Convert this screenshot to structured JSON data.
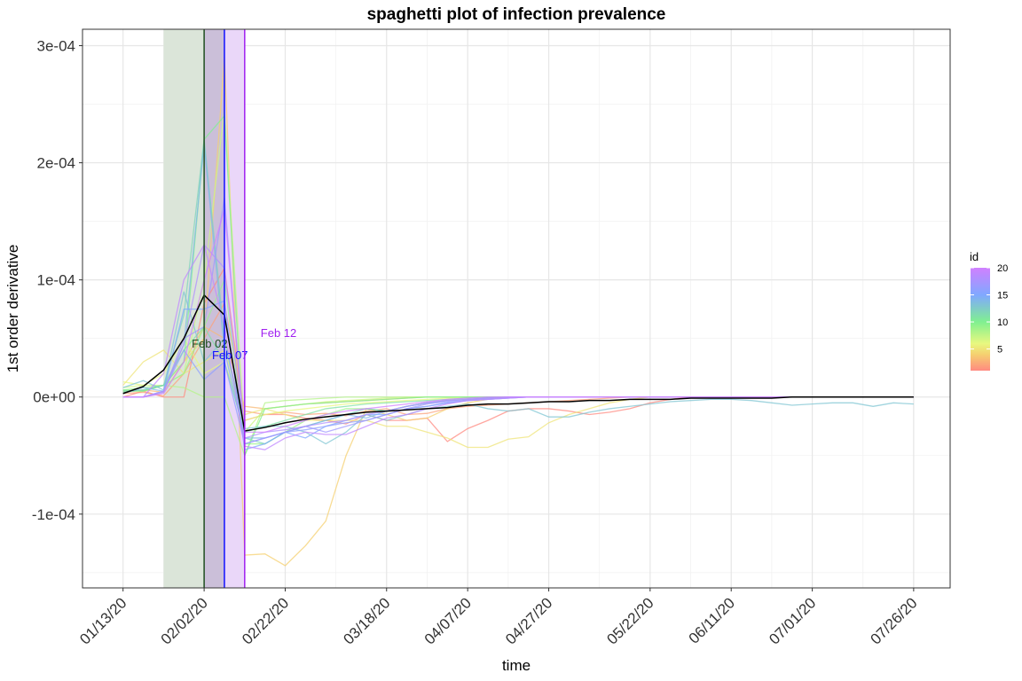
{
  "chart_data": {
    "type": "line",
    "title": "spaghetti plot of infection prevalence",
    "xlabel": "time",
    "ylabel": "1st order derivative",
    "ylim": [
      -0.000163,
      0.000314
    ],
    "xlim": [
      "2020-01-03",
      "2020-08-04"
    ],
    "grid": true,
    "x_ticks": [
      {
        "date": "2020-01-13",
        "label": "01/13/20"
      },
      {
        "date": "2020-02-02",
        "label": "02/02/20"
      },
      {
        "date": "2020-02-22",
        "label": "02/22/20"
      },
      {
        "date": "2020-03-18",
        "label": "03/18/20"
      },
      {
        "date": "2020-04-07",
        "label": "04/07/20"
      },
      {
        "date": "2020-04-27",
        "label": "04/27/20"
      },
      {
        "date": "2020-05-22",
        "label": "05/22/20"
      },
      {
        "date": "2020-06-11",
        "label": "06/11/20"
      },
      {
        "date": "2020-07-01",
        "label": "07/01/20"
      },
      {
        "date": "2020-07-26",
        "label": "07/26/20"
      }
    ],
    "y_ticks": [
      {
        "value": 0.0003,
        "label": "3e-04"
      },
      {
        "value": 0.0002,
        "label": "2e-04"
      },
      {
        "value": 0.0001,
        "label": "1e-04"
      },
      {
        "value": 0,
        "label": "0e+00"
      },
      {
        "value": -0.0001,
        "label": "-1e-04"
      }
    ],
    "x": [
      "2020-01-13",
      "2020-01-18",
      "2020-01-23",
      "2020-01-28",
      "2020-02-02",
      "2020-02-07",
      "2020-02-12",
      "2020-02-17",
      "2020-02-22",
      "2020-02-27",
      "2020-03-03",
      "2020-03-08",
      "2020-03-13",
      "2020-03-18",
      "2020-03-23",
      "2020-03-28",
      "2020-04-02",
      "2020-04-07",
      "2020-04-12",
      "2020-04-17",
      "2020-04-22",
      "2020-04-27",
      "2020-05-02",
      "2020-05-07",
      "2020-05-12",
      "2020-05-17",
      "2020-05-22",
      "2020-05-27",
      "2020-06-01",
      "2020-06-06",
      "2020-06-11",
      "2020-06-16",
      "2020-06-21",
      "2020-06-26",
      "2020-07-01",
      "2020-07-06",
      "2020-07-11",
      "2020-07-16",
      "2020-07-21",
      "2020-07-26"
    ],
    "legend": {
      "title": "id",
      "position": "right",
      "type": "colorbar",
      "min": 1,
      "max": 20,
      "ticks": [
        5,
        10,
        15,
        20
      ],
      "color_stops": [
        {
          "id": 1,
          "color": "#ff8a80"
        },
        {
          "id": 4,
          "color": "#f5d070"
        },
        {
          "id": 6,
          "color": "#e8f880"
        },
        {
          "id": 10,
          "color": "#80f090"
        },
        {
          "id": 15,
          "color": "#80a8ff"
        },
        {
          "id": 20,
          "color": "#d080ff"
        }
      ]
    },
    "series": [
      {
        "id": 1,
        "values": [
          0,
          5e-06,
          0,
          0,
          8e-05,
          0.00011,
          -2e-05,
          -1.5e-05,
          -1.5e-05,
          -1.8e-05,
          -2e-05,
          -2.3e-05,
          -1.5e-05,
          -2e-05,
          -2e-05,
          -1.8e-05,
          -3.8e-05,
          -2.7e-05,
          -2e-05,
          -1.2e-05,
          -1e-05,
          -1e-05,
          -1.2e-05,
          -1.5e-05,
          -1.3e-05,
          -1e-05,
          -5e-06,
          -2e-06,
          0,
          0,
          0,
          0,
          0,
          0,
          0,
          0,
          0,
          0,
          0,
          0
        ]
      },
      {
        "id": 2,
        "values": [
          3e-06,
          4e-06,
          1e-06,
          2e-05,
          5e-05,
          8e-05,
          -1.2e-05,
          -1.5e-05,
          -1.3e-05,
          -1.5e-05,
          -1.4e-05,
          -1.6e-05,
          -1.2e-05,
          -1e-05,
          -1.5e-05,
          -1.4e-05,
          -1e-05,
          -8e-06,
          -7e-06,
          -6e-06,
          -5e-06,
          -4e-06,
          -3e-06,
          -2e-06,
          -1e-06,
          0,
          0,
          0,
          0,
          0,
          0,
          0,
          0,
          0,
          0,
          0,
          0,
          0,
          0,
          0
        ]
      },
      {
        "id": 3,
        "values": [
          5e-06,
          6e-06,
          4e-06,
          3e-05,
          6e-05,
          5e-05,
          -8e-06,
          -1e-05,
          -8e-06,
          -6e-06,
          -5e-06,
          -4e-06,
          -3e-06,
          -2e-06,
          -1e-06,
          0,
          0,
          0,
          0,
          0,
          0,
          0,
          0,
          0,
          0,
          0,
          0,
          0,
          0,
          0,
          0,
          0,
          0,
          0,
          0,
          0,
          0,
          0,
          0,
          0
        ]
      },
      {
        "id": 4,
        "values": [
          5e-06,
          5e-06,
          1e-05,
          3e-05,
          5e-05,
          0.00029,
          -0.000135,
          -0.000134,
          -0.000144,
          -0.000127,
          -0.000106,
          -5e-05,
          -1e-05,
          -1.5e-05,
          -2e-05,
          -1.8e-05,
          -1e-05,
          -5e-06,
          -2e-06,
          0,
          0,
          0,
          0,
          0,
          0,
          0,
          0,
          0,
          0,
          0,
          0,
          0,
          0,
          0,
          0,
          0,
          0,
          0,
          0,
          0
        ]
      },
      {
        "id": 5,
        "values": [
          1e-05,
          3e-05,
          4e-05,
          2e-05,
          3e-05,
          4e-05,
          -1.5e-05,
          -1e-05,
          -1.5e-05,
          -2e-05,
          -2e-05,
          -2e-05,
          -2e-05,
          -2.5e-05,
          -2.5e-05,
          -3e-05,
          -3.5e-05,
          -4.3e-05,
          -4.3e-05,
          -3.6e-05,
          -3.4e-05,
          -2.2e-05,
          -1.5e-05,
          -1e-05,
          -5e-06,
          -2e-06,
          0,
          0,
          0,
          0,
          0,
          0,
          0,
          0,
          0,
          0,
          0,
          0,
          0,
          0
        ]
      },
      {
        "id": 6,
        "values": [
          1.3e-05,
          1e-05,
          2e-05,
          5e-05,
          2e-05,
          3e-05,
          -2e-05,
          -1.5e-05,
          -1.2e-05,
          -1e-05,
          -8e-06,
          -6e-06,
          -5e-06,
          -4e-06,
          -3e-06,
          -2e-06,
          -1e-06,
          0,
          0,
          0,
          0,
          0,
          0,
          0,
          0,
          0,
          0,
          0,
          0,
          0,
          0,
          0,
          0,
          0,
          0,
          0,
          0,
          0,
          0,
          0
        ]
      },
      {
        "id": 7,
        "values": [
          8e-06,
          1e-05,
          1e-05,
          2e-05,
          0.0001,
          0.000245,
          -3e-05,
          -1e-05,
          -8e-06,
          -6e-06,
          -4e-06,
          -3e-06,
          -2e-06,
          -1e-06,
          0,
          0,
          0,
          0,
          0,
          0,
          0,
          0,
          0,
          0,
          0,
          0,
          0,
          0,
          0,
          0,
          0,
          0,
          0,
          0,
          0,
          0,
          0,
          0,
          0,
          0
        ]
      },
      {
        "id": 8,
        "values": [
          5e-06,
          5e-06,
          1e-05,
          8e-06,
          0,
          0,
          -5e-05,
          -5e-06,
          -3e-06,
          -2e-06,
          -1e-06,
          0,
          0,
          0,
          0,
          0,
          0,
          0,
          0,
          0,
          0,
          0,
          0,
          0,
          0,
          0,
          0,
          0,
          0,
          0,
          0,
          0,
          0,
          0,
          0,
          0,
          0,
          0,
          0,
          0
        ]
      },
      {
        "id": 9,
        "values": [
          6e-06,
          8e-06,
          1e-05,
          2e-05,
          6e-05,
          0.0001,
          -4e-05,
          -4e-05,
          -3e-05,
          -2e-05,
          -1.5e-05,
          -1e-05,
          -1e-05,
          -1.2e-05,
          -8e-06,
          -5e-06,
          -3e-06,
          -2e-06,
          -1e-06,
          0,
          0,
          0,
          0,
          0,
          0,
          0,
          0,
          0,
          0,
          0,
          0,
          0,
          0,
          0,
          0,
          0,
          0,
          0,
          0,
          0
        ]
      },
      {
        "id": 10,
        "values": [
          6e-06,
          5e-06,
          1e-05,
          3e-05,
          0.00022,
          0.00024,
          -5e-05,
          -1e-05,
          -8e-06,
          -6e-06,
          -5e-06,
          -4e-06,
          -3e-06,
          -2e-06,
          -1e-06,
          0,
          0,
          0,
          0,
          0,
          0,
          0,
          0,
          0,
          0,
          0,
          0,
          0,
          0,
          0,
          0,
          0,
          0,
          0,
          0,
          0,
          0,
          0,
          0,
          0
        ]
      },
      {
        "id": 11,
        "values": [
          4e-06,
          6e-06,
          1e-05,
          4e-05,
          6e-05,
          3e-05,
          -3e-05,
          -2.5e-05,
          -2e-05,
          -1.5e-05,
          -1e-05,
          -8e-06,
          -6e-06,
          -5e-06,
          -4e-06,
          -3e-06,
          -2e-06,
          -1e-06,
          0,
          0,
          0,
          0,
          0,
          0,
          0,
          0,
          0,
          0,
          0,
          0,
          0,
          0,
          0,
          0,
          0,
          0,
          0,
          0,
          0,
          0
        ]
      },
      {
        "id": 12,
        "values": [
          5e-06,
          6e-06,
          1e-05,
          7e-05,
          0.00022,
          5e-05,
          -3.5e-05,
          -4e-05,
          -3e-05,
          -2.5e-05,
          -2e-05,
          -1.5e-05,
          -1e-05,
          -1.2e-05,
          -8e-06,
          -5e-06,
          -3e-06,
          -2e-06,
          -1e-06,
          0,
          0,
          0,
          0,
          0,
          0,
          0,
          0,
          0,
          0,
          0,
          0,
          0,
          0,
          0,
          0,
          0,
          0,
          0,
          0,
          0
        ]
      },
      {
        "id": 13,
        "values": [
          8e-06,
          1.4e-05,
          6e-06,
          9e-05,
          3e-05,
          5e-05,
          -2.7e-05,
          -2.5e-05,
          -2.5e-05,
          -3e-05,
          -4e-05,
          -3e-05,
          -1.5e-05,
          -2e-05,
          -1.5e-05,
          -1e-05,
          -8e-06,
          -6e-06,
          -1e-05,
          -1.2e-05,
          -1e-05,
          -1.7e-05,
          -1.7e-05,
          -1.3e-05,
          -1e-05,
          -8e-06,
          -6e-06,
          -4e-06,
          -3e-06,
          -2e-06,
          -2e-06,
          -3e-06,
          -5e-06,
          -7e-06,
          -6e-06,
          -5e-06,
          -5e-06,
          -8e-06,
          -5e-06,
          -6e-06
        ]
      },
      {
        "id": 14,
        "values": [
          3e-06,
          8e-06,
          5e-06,
          4.5e-05,
          0.000215,
          4e-05,
          -3.5e-05,
          -3.5e-05,
          -3e-05,
          -2.5e-05,
          -2e-05,
          -1.5e-05,
          -1.8e-05,
          -1.2e-05,
          -8e-06,
          -5e-06,
          -3e-06,
          -2e-06,
          -1e-06,
          0,
          0,
          0,
          0,
          0,
          0,
          0,
          0,
          0,
          0,
          0,
          0,
          0,
          0,
          0,
          0,
          0,
          0,
          0,
          0,
          0
        ]
      },
      {
        "id": 15,
        "values": [
          0,
          0,
          5e-06,
          7.5e-05,
          7.5e-05,
          8.2e-05,
          -4.5e-05,
          -4e-05,
          -3e-05,
          -3.5e-05,
          -2.5e-05,
          -2e-05,
          -1.5e-05,
          -1.5e-05,
          -1e-05,
          -8e-06,
          -5e-06,
          -3e-06,
          -2e-06,
          -1e-06,
          0,
          0,
          0,
          0,
          0,
          0,
          0,
          0,
          0,
          0,
          0,
          0,
          0,
          0,
          0,
          0,
          0,
          0,
          0,
          0
        ]
      },
      {
        "id": 16,
        "values": [
          0,
          0,
          5e-06,
          4e-05,
          1.5e-05,
          3e-05,
          -4e-05,
          -3.5e-05,
          -3e-05,
          -2.8e-05,
          -2.5e-05,
          -2.2e-05,
          -2e-05,
          -1.5e-05,
          -1e-05,
          -8e-06,
          -5e-06,
          -3e-06,
          -2e-06,
          -1e-06,
          0,
          0,
          0,
          0,
          0,
          0,
          0,
          0,
          0,
          0,
          0,
          0,
          0,
          0,
          0,
          0,
          0,
          0,
          0,
          0
        ]
      },
      {
        "id": 17,
        "values": [
          0,
          0,
          4e-06,
          5e-05,
          6e-05,
          0.00017,
          -4e-05,
          -3.5e-05,
          -3e-05,
          -2.5e-05,
          -3e-05,
          -2.5e-05,
          -2e-05,
          -1.5e-05,
          -1e-05,
          -6e-06,
          -4e-06,
          -2e-06,
          -1e-06,
          0,
          0,
          0,
          0,
          0,
          0,
          0,
          0,
          0,
          0,
          0,
          0,
          0,
          0,
          0,
          0,
          0,
          0,
          0,
          0,
          0
        ]
      },
      {
        "id": 18,
        "values": [
          0,
          0,
          5e-06,
          4.5e-05,
          0.00013,
          0.00011,
          -3.5e-05,
          -3e-05,
          -2.8e-05,
          -2.5e-05,
          -2.2e-05,
          -2e-05,
          -1.5e-05,
          -1.2e-05,
          -8e-06,
          -5e-06,
          -3e-06,
          -2e-06,
          -1e-06,
          0,
          0,
          0,
          0,
          0,
          0,
          0,
          0,
          0,
          0,
          0,
          0,
          0,
          0,
          0,
          0,
          0,
          0,
          0,
          0,
          0
        ]
      },
      {
        "id": 19,
        "values": [
          0,
          0,
          2e-05,
          0.0001,
          0.00013,
          6e-05,
          -4.2e-05,
          -4.5e-05,
          -3.5e-05,
          -3e-05,
          -3.2e-05,
          -3.2e-05,
          -2.5e-05,
          -1.8e-05,
          -1.5e-05,
          -1e-05,
          -6e-06,
          -3e-06,
          -2e-06,
          -1e-06,
          0,
          0,
          0,
          0,
          0,
          0,
          0,
          0,
          0,
          0,
          0,
          0,
          0,
          0,
          0,
          0,
          0,
          0,
          0,
          0
        ]
      },
      {
        "id": 20,
        "values": [
          0,
          0,
          3e-06,
          3e-05,
          0.0001,
          0.00016,
          -3e-05,
          -3e-05,
          -2.5e-05,
          -2e-05,
          -1.5e-05,
          -1.2e-05,
          -1e-05,
          -8e-06,
          -6e-06,
          -4e-06,
          -2e-06,
          -1e-06,
          0,
          0,
          0,
          0,
          0,
          0,
          0,
          0,
          0,
          0,
          0,
          0,
          0,
          0,
          0,
          0,
          0,
          0,
          0,
          0,
          0,
          0
        ]
      }
    ],
    "mean_line": {
      "color": "#000000",
      "values": [
        3e-06,
        9e-06,
        2.3e-05,
        5e-05,
        8.7e-05,
        7e-05,
        -2.9e-05,
        -2.6e-05,
        -2.2e-05,
        -1.9e-05,
        -1.7e-05,
        -1.5e-05,
        -1.3e-05,
        -1.2e-05,
        -1.1e-05,
        -1e-05,
        -9e-06,
        -7e-06,
        -6e-06,
        -6e-06,
        -5e-06,
        -4e-06,
        -4e-06,
        -3e-06,
        -3e-06,
        -2e-06,
        -2e-06,
        -2e-06,
        -1e-06,
        -1e-06,
        -1e-06,
        -1e-06,
        -1e-06,
        0,
        0,
        0,
        0,
        0,
        0,
        0
      ]
    },
    "shaded_periods": [
      {
        "from": "2020-01-23",
        "to": "2020-02-02",
        "color": "#dbe5d9"
      },
      {
        "from": "2020-02-02",
        "to": "2020-02-07",
        "color": "#cbbfd9"
      },
      {
        "from": "2020-02-07",
        "to": "2020-02-12",
        "color": "#ead7f9"
      }
    ],
    "annotations": [
      {
        "date": "2020-02-02",
        "label": "Feb 02",
        "color": "#1e4d1e",
        "label_y": 4.6e-05,
        "label_date": "2020-02-02"
      },
      {
        "date": "2020-02-07",
        "label": "Feb 07",
        "color": "#1010ff",
        "label_y": 3.6e-05,
        "label_date": "2020-02-07"
      },
      {
        "date": "2020-02-12",
        "label": "Feb 12",
        "color": "#a020f0",
        "label_y": 5.5e-05,
        "label_date": "2020-02-19"
      }
    ]
  }
}
